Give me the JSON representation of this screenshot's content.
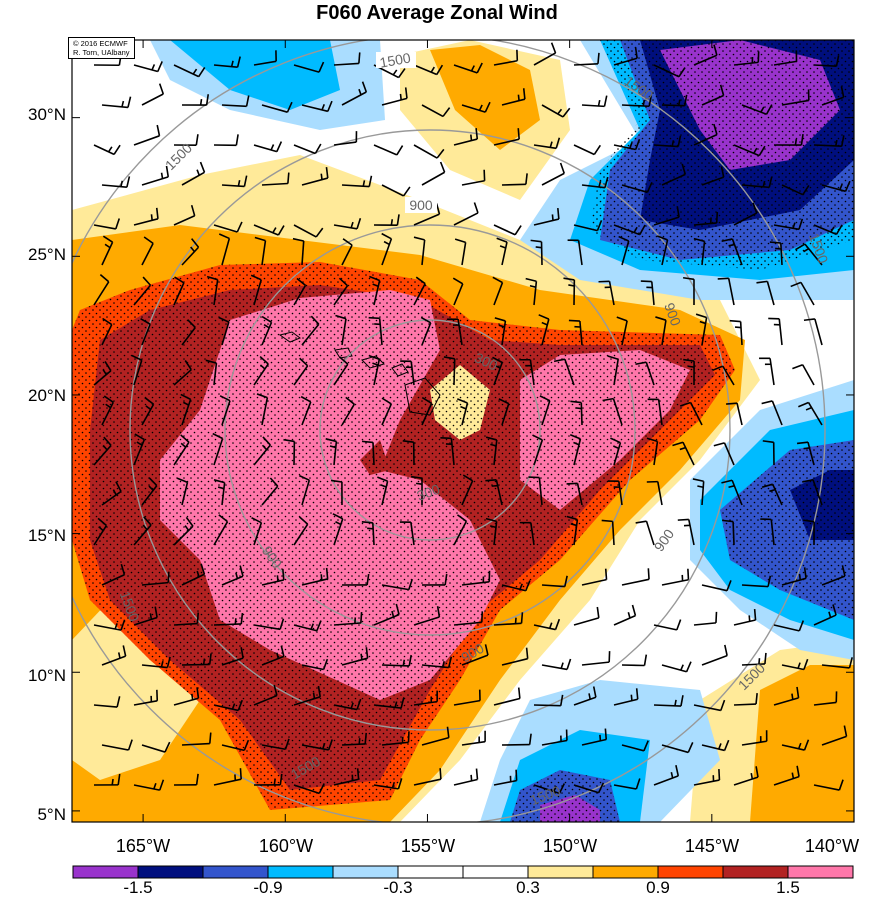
{
  "title": "F060 Average Zonal Wind",
  "credit": {
    "line1": "© 2016 ECMWF",
    "line2": "R. Torn, UAlbany"
  },
  "axes": {
    "lat_labels": [
      "30°N",
      "25°N",
      "20°N",
      "15°N",
      "10°N",
      "5°N"
    ],
    "lat_values": [
      30,
      25,
      20,
      15,
      10,
      5
    ],
    "lon_labels": [
      "165°W",
      "160°W",
      "155°W",
      "150°W",
      "145°W",
      "140°W"
    ],
    "lon_values": [
      -165,
      -160,
      -155,
      -150,
      -145,
      -140
    ],
    "lon_range": [
      -167.5,
      -140
    ],
    "lat_range": [
      4.6,
      32.8
    ]
  },
  "contour_labels": [
    "1500",
    "900",
    "300"
  ],
  "colorbar": {
    "labels": [
      "-1.5",
      "-0.9",
      "-0.3",
      "0.3",
      "0.9",
      "1.5"
    ],
    "colors": [
      "#9933cc",
      "#000f7e",
      "#3355cc",
      "#00bbff",
      "#aaddff",
      "#ffffff",
      "#ffffff",
      "#ffea99",
      "#ffaa00",
      "#ff4400",
      "#b22222",
      "#ff77aa"
    ]
  }
}
